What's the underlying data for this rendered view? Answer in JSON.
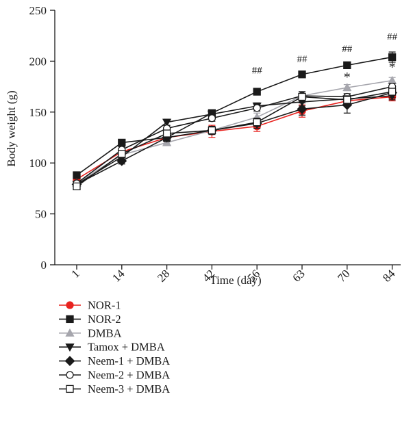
{
  "chart_data": {
    "type": "line",
    "title": "",
    "xlabel": "Time (day)",
    "ylabel": "Body weight (g)",
    "categories": [
      "1",
      "14",
      "28",
      "42",
      "56",
      "63",
      "70",
      "84"
    ],
    "ylim": [
      0,
      250
    ],
    "yticks": [
      0,
      50,
      100,
      150,
      200,
      250
    ],
    "grid": false,
    "legend_position": "bottom-left",
    "error_bars": true,
    "series": [
      {
        "name": "NOR-1",
        "color": "#e8231f",
        "marker": "circle-filled",
        "values": [
          84,
          111,
          125,
          131,
          136,
          151,
          161,
          165
        ],
        "err": [
          3,
          3,
          4,
          6,
          5,
          6,
          5,
          4
        ]
      },
      {
        "name": "NOR-2",
        "color": "#1a1a1a",
        "marker": "square-filled",
        "values": [
          88,
          120,
          125,
          149,
          170,
          187,
          196,
          204
        ],
        "err": [
          3,
          3,
          3,
          3,
          3,
          3,
          3,
          5
        ]
      },
      {
        "name": "DMBA",
        "color": "#a6a6ad",
        "marker": "triangle-up-filled",
        "values": [
          80,
          108,
          120,
          132,
          145,
          166,
          174,
          181
        ],
        "err": [
          2,
          3,
          3,
          3,
          4,
          4,
          3,
          3
        ]
      },
      {
        "name": "Tamox + DMBA",
        "color": "#1a1a1a",
        "marker": "triangle-down-filled",
        "values": [
          79,
          106,
          140,
          148,
          156,
          160,
          163,
          166
        ],
        "err": [
          2,
          3,
          3,
          3,
          3,
          4,
          5,
          4
        ]
      },
      {
        "name": "Neem-1 + DMBA",
        "color": "#1a1a1a",
        "marker": "diamond-filled",
        "values": [
          79,
          102,
          125,
          132,
          139,
          153,
          157,
          169
        ],
        "err": [
          2,
          3,
          4,
          4,
          5,
          6,
          8,
          5
        ]
      },
      {
        "name": "Neem-2 + DMBA",
        "color": "#1a1a1a",
        "marker": "circle-open",
        "values": [
          80,
          113,
          134,
          144,
          154,
          166,
          165,
          175
        ],
        "err": [
          2,
          3,
          3,
          3,
          3,
          4,
          3,
          3
        ]
      },
      {
        "name": "Neem-3 + DMBA",
        "color": "#1a1a1a",
        "marker": "square-open",
        "values": [
          77,
          109,
          129,
          132,
          140,
          165,
          162,
          170
        ],
        "err": [
          2,
          3,
          3,
          3,
          4,
          5,
          4,
          3
        ]
      }
    ],
    "annotations": [
      {
        "text": "##",
        "category": "56",
        "y": 188
      },
      {
        "text": "##",
        "category": "63",
        "y": 199
      },
      {
        "text": "##",
        "category": "70",
        "y": 209
      },
      {
        "text": "##",
        "category": "84",
        "y": 221
      },
      {
        "text": "*",
        "category": "70",
        "y": 180
      },
      {
        "text": "*",
        "category": "84",
        "y": 190
      }
    ]
  }
}
